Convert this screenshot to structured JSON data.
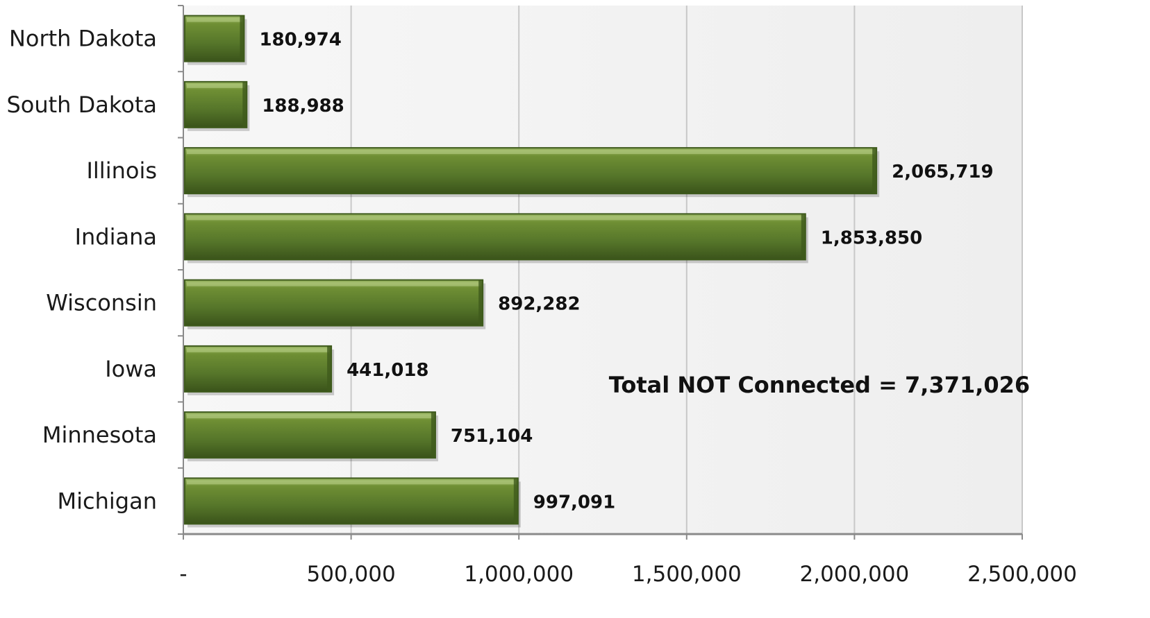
{
  "chart_data": {
    "type": "bar",
    "orientation": "horizontal",
    "categories": [
      "North Dakota",
      "South Dakota",
      "Illinois",
      "Indiana",
      "Wisconsin",
      "Iowa",
      "Minnesota",
      "Michigan"
    ],
    "values": [
      180974,
      188988,
      2065719,
      1853850,
      892282,
      441018,
      751104,
      997091
    ],
    "data_labels": [
      "180,974",
      "188,988",
      "2,065,719",
      "1,853,850",
      "892,282",
      "441,018",
      "751,104",
      "997,091"
    ],
    "xlim": [
      0,
      2500000
    ],
    "x_ticks": [
      0,
      500000,
      1000000,
      1500000,
      2000000,
      2500000
    ],
    "x_tick_labels": [
      "-",
      "500,000",
      "1,000,000",
      "1,500,000",
      "2,000,000",
      "2,500,000"
    ],
    "title": "",
    "xlabel": "",
    "ylabel": "",
    "grid": true,
    "legend": "none",
    "annotation": "Total NOT Connected = 7,371,026",
    "colors": {
      "bar": "#5a7a2a",
      "bar_light": "#7d9c45",
      "bar_dark": "#3e5a1c",
      "grid": "#c8c8c8",
      "axis": "#8a8a8a",
      "plot_bg": "#f4f4f4"
    }
  }
}
